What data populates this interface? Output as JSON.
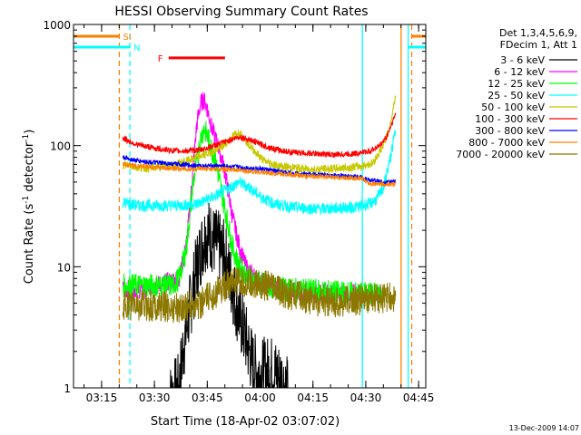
{
  "chart_data": {
    "type": "line",
    "title": "HESSI Observing Summary Count Rates",
    "xlabel": "Start Time (18-Apr-02 03:07:02)",
    "ylabel_main": "Count Rate (s",
    "ylabel_sup1": "-1",
    "ylabel_mid": " detector",
    "ylabel_sup2": "-1",
    "ylabel_end": ")",
    "y_scale": "log",
    "ylim": [
      1,
      1000
    ],
    "xlim_minutes": [
      0,
      100
    ],
    "x_ticks": [
      {
        "label": "03:15",
        "m": 7.97
      },
      {
        "label": "03:30",
        "m": 22.97
      },
      {
        "label": "03:45",
        "m": 37.97
      },
      {
        "label": "04:00",
        "m": 52.97
      },
      {
        "label": "04:15",
        "m": 67.97
      },
      {
        "label": "04:30",
        "m": 82.97
      },
      {
        "label": "04:45",
        "m": 97.97
      }
    ],
    "y_ticks": [
      {
        "label": "1",
        "v": 1
      },
      {
        "label": "10",
        "v": 10
      },
      {
        "label": "100",
        "v": 100
      },
      {
        "label": "1000",
        "v": 1000
      }
    ],
    "legend_header": [
      "Det 1,3,4,5,6,9,",
      "FDecim 1, Att 1"
    ],
    "series": [
      {
        "name": "3 - 6 keV",
        "color": "#000000",
        "points": [
          [
            27,
            0.8
          ],
          [
            30,
            1.0
          ],
          [
            31,
            2.0
          ],
          [
            33,
            4.5
          ],
          [
            35,
            10
          ],
          [
            37,
            17
          ],
          [
            38,
            19
          ],
          [
            39,
            18
          ],
          [
            40,
            16
          ],
          [
            41,
            15
          ],
          [
            43,
            12
          ],
          [
            44,
            9
          ],
          [
            45,
            7
          ],
          [
            47,
            4
          ],
          [
            49,
            2.5
          ],
          [
            51,
            1.5
          ],
          [
            53,
            1.3
          ],
          [
            56,
            1.4
          ],
          [
            59,
            1.2
          ],
          [
            61,
            0.9
          ]
        ],
        "noise": 0.3
      },
      {
        "name": "6 - 12 keV",
        "color": "#ff00ff",
        "points": [
          [
            14,
            6.5
          ],
          [
            20,
            6.5
          ],
          [
            30,
            8
          ],
          [
            32,
            15
          ],
          [
            33,
            30
          ],
          [
            34,
            70
          ],
          [
            35,
            150
          ],
          [
            36,
            220
          ],
          [
            37,
            240
          ],
          [
            38,
            200
          ],
          [
            39,
            150
          ],
          [
            40,
            120
          ],
          [
            41,
            100
          ],
          [
            42,
            80
          ],
          [
            43,
            60
          ],
          [
            44,
            40
          ],
          [
            45,
            27
          ],
          [
            46,
            20
          ],
          [
            47,
            15
          ],
          [
            48,
            12
          ],
          [
            49,
            10
          ],
          [
            50,
            9
          ],
          [
            52,
            8
          ],
          [
            55,
            7
          ],
          [
            60,
            6.5
          ],
          [
            66,
            6
          ],
          [
            75,
            6
          ],
          [
            80,
            6
          ],
          [
            85,
            6
          ],
          [
            88,
            6
          ]
        ],
        "noise": 0.08
      },
      {
        "name": "12 - 25 keV",
        "color": "#00ff00",
        "points": [
          [
            14,
            7
          ],
          [
            28,
            7
          ],
          [
            30,
            8
          ],
          [
            32,
            14
          ],
          [
            34,
            50
          ],
          [
            36,
            110
          ],
          [
            37,
            140
          ],
          [
            38,
            120
          ],
          [
            40,
            80
          ],
          [
            41,
            60
          ],
          [
            43,
            30
          ],
          [
            45,
            15
          ],
          [
            47,
            10
          ],
          [
            50,
            8
          ],
          [
            55,
            7
          ],
          [
            60,
            6.5
          ],
          [
            70,
            6.3
          ],
          [
            80,
            6
          ],
          [
            88,
            6
          ]
        ],
        "noise": 0.1
      },
      {
        "name": "25 - 50 keV",
        "color": "#00ffff",
        "points": [
          [
            14,
            34
          ],
          [
            18,
            32
          ],
          [
            24,
            32
          ],
          [
            30,
            32
          ],
          [
            35,
            33
          ],
          [
            40,
            38
          ],
          [
            44,
            44
          ],
          [
            47,
            50
          ],
          [
            50,
            45
          ],
          [
            53,
            38
          ],
          [
            57,
            33
          ],
          [
            62,
            31
          ],
          [
            70,
            30
          ],
          [
            80,
            31
          ],
          [
            84,
            33
          ],
          [
            86,
            36
          ],
          [
            88,
            45
          ],
          [
            90,
            80
          ],
          [
            91.5,
            140
          ]
        ],
        "noise": 0.05
      },
      {
        "name": "50 - 100 keV",
        "color": "#c8c800",
        "points": [
          [
            14,
            70
          ],
          [
            20,
            65
          ],
          [
            28,
            68
          ],
          [
            34,
            78
          ],
          [
            38,
            86
          ],
          [
            42,
            96
          ],
          [
            44,
            110
          ],
          [
            46,
            125
          ],
          [
            47,
            128
          ],
          [
            48,
            120
          ],
          [
            50,
            100
          ],
          [
            54,
            75
          ],
          [
            58,
            68
          ],
          [
            62,
            66
          ],
          [
            66,
            64
          ],
          [
            72,
            64
          ],
          [
            78,
            66
          ],
          [
            82,
            68
          ],
          [
            85,
            72
          ],
          [
            88,
            100
          ],
          [
            90,
            150
          ],
          [
            91.5,
            270
          ]
        ],
        "noise": 0.035
      },
      {
        "name": "100 - 300 keV",
        "color": "#ff0000",
        "points": [
          [
            14,
            115
          ],
          [
            18,
            102
          ],
          [
            24,
            94
          ],
          [
            30,
            90
          ],
          [
            36,
            92
          ],
          [
            40,
            100
          ],
          [
            44,
            110
          ],
          [
            47,
            118
          ],
          [
            50,
            112
          ],
          [
            54,
            100
          ],
          [
            58,
            92
          ],
          [
            62,
            88
          ],
          [
            68,
            86
          ],
          [
            74,
            84
          ],
          [
            80,
            86
          ],
          [
            84,
            90
          ],
          [
            87,
            100
          ],
          [
            89,
            120
          ],
          [
            91.5,
            185
          ]
        ],
        "noise": 0.025
      },
      {
        "name": "300 - 800 keV",
        "color": "#0000ff",
        "points": [
          [
            14,
            80
          ],
          [
            18,
            75
          ],
          [
            24,
            72
          ],
          [
            30,
            70
          ],
          [
            36,
            68
          ],
          [
            42,
            68
          ],
          [
            48,
            66
          ],
          [
            54,
            64
          ],
          [
            60,
            60
          ],
          [
            66,
            58
          ],
          [
            72,
            57
          ],
          [
            78,
            56
          ],
          [
            82,
            55
          ],
          [
            84,
            52
          ],
          [
            86,
            51
          ],
          [
            88,
            50
          ],
          [
            91.5,
            50
          ]
        ],
        "noise": 0.02
      },
      {
        "name": "800 - 7000 keV",
        "color": "#ff8000",
        "points": [
          [
            14,
            70
          ],
          [
            18,
            68
          ],
          [
            24,
            66
          ],
          [
            30,
            64
          ],
          [
            36,
            64
          ],
          [
            42,
            64
          ],
          [
            48,
            62
          ],
          [
            54,
            60
          ],
          [
            60,
            58
          ],
          [
            66,
            56
          ],
          [
            72,
            55
          ],
          [
            78,
            54
          ],
          [
            82,
            53
          ],
          [
            84,
            49
          ],
          [
            86,
            48
          ],
          [
            88,
            48
          ],
          [
            91.5,
            48
          ]
        ],
        "noise": 0.02
      },
      {
        "name": "7000 - 20000 keV",
        "color": "#8c7800",
        "points": [
          [
            14,
            4.8
          ],
          [
            20,
            4.8
          ],
          [
            30,
            4.6
          ],
          [
            36,
            5
          ],
          [
            40,
            6
          ],
          [
            44,
            7.3
          ],
          [
            50,
            7.3
          ],
          [
            55,
            7
          ],
          [
            60,
            6
          ],
          [
            66,
            5.5
          ],
          [
            72,
            5
          ],
          [
            78,
            5.2
          ],
          [
            84,
            5.4
          ],
          [
            88,
            5.5
          ],
          [
            91.5,
            5.6
          ]
        ],
        "noise": 0.13
      }
    ],
    "flags": [
      {
        "label": "SI",
        "color": "#ff8000",
        "m_start": 0,
        "m_end": 13,
        "v": 800
      },
      {
        "label": "N",
        "color": "#00ffff",
        "m_start": 0,
        "m_end": 16,
        "v": 650
      },
      {
        "label": "F",
        "color": "#ff0000",
        "m_start": 27,
        "m_end": 43,
        "v": 530
      }
    ],
    "vlines": [
      {
        "m": 13,
        "color": "#ff8000",
        "dashed": true
      },
      {
        "m": 16,
        "color": "#00ffff",
        "dashed": true
      },
      {
        "m": 82,
        "color": "#00ffff",
        "dashed": false
      },
      {
        "m": 93,
        "color": "#ff8000",
        "dashed": false
      },
      {
        "m": 95,
        "color": "#00ffff",
        "dashed": false
      },
      {
        "m": 96,
        "color": "#ff8000",
        "dashed": true
      }
    ],
    "right_stubs": [
      {
        "m_start": 96,
        "m_end": 100,
        "v": 800,
        "color": "#ff8000"
      },
      {
        "m_start": 95,
        "m_end": 100,
        "v": 650,
        "color": "#00ffff"
      }
    ],
    "timestamp": "13-Dec-2009 14:07"
  }
}
